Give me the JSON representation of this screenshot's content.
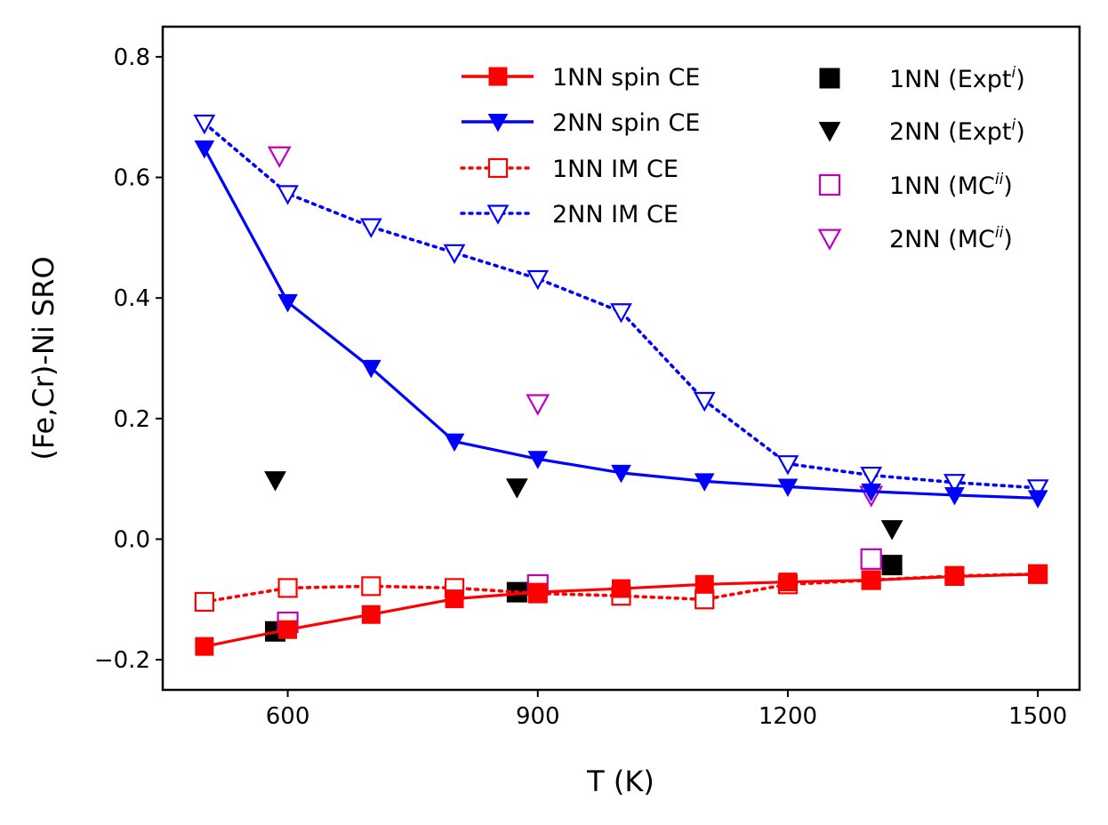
{
  "chart_data": {
    "type": "line",
    "xlabel": "T (K)",
    "ylabel": "(Fe,Cr)-Ni SRO",
    "xlim": [
      450,
      1550
    ],
    "ylim": [
      -0.25,
      0.85
    ],
    "xticks": [
      600,
      900,
      1200,
      1500
    ],
    "yticks": [
      -0.2,
      0.0,
      0.2,
      0.4,
      0.6,
      0.8
    ],
    "xtick_labels": [
      "600",
      "900",
      "1200",
      "1500"
    ],
    "ytick_labels": [
      "−0.2",
      "0.0",
      "0.2",
      "0.4",
      "0.6",
      "0.8"
    ],
    "grid": false,
    "legend_position": "top-right",
    "series": [
      {
        "name": "1NN spin CE",
        "color": "#ff0000",
        "linestyle": "solid",
        "marker": "square",
        "filled": true,
        "x": [
          500,
          600,
          700,
          800,
          900,
          1000,
          1100,
          1200,
          1300,
          1400,
          1500
        ],
        "y": [
          -0.178,
          -0.15,
          -0.125,
          -0.099,
          -0.088,
          -0.082,
          -0.075,
          -0.071,
          -0.068,
          -0.062,
          -0.058
        ]
      },
      {
        "name": "2NN spin CE",
        "color": "#0000ff",
        "linestyle": "solid",
        "marker": "triangle-down",
        "filled": true,
        "x": [
          500,
          600,
          700,
          800,
          900,
          1000,
          1100,
          1200,
          1300,
          1400,
          1500
        ],
        "y": [
          0.648,
          0.393,
          0.284,
          0.162,
          0.133,
          0.11,
          0.096,
          0.087,
          0.079,
          0.073,
          0.068
        ]
      },
      {
        "name": "1NN IM CE",
        "color": "#ff0000",
        "linestyle": "dotted",
        "marker": "square",
        "filled": false,
        "x": [
          500,
          600,
          700,
          800,
          900,
          1000,
          1100,
          1200,
          1300,
          1400,
          1500
        ],
        "y": [
          -0.104,
          -0.081,
          -0.078,
          -0.081,
          -0.09,
          -0.094,
          -0.1,
          -0.075,
          -0.068,
          -0.061,
          -0.058
        ]
      },
      {
        "name": "2NN IM CE",
        "color": "#0000ff",
        "linestyle": "dotted",
        "marker": "triangle-down",
        "filled": false,
        "x": [
          500,
          600,
          700,
          800,
          900,
          1000,
          1100,
          1200,
          1300,
          1400,
          1500
        ],
        "y": [
          0.69,
          0.573,
          0.518,
          0.475,
          0.432,
          0.377,
          0.23,
          0.125,
          0.106,
          0.094,
          0.085
        ]
      },
      {
        "name": "1NN (Expt",
        "superscript": "i",
        "suffix": ")",
        "color": "#000000",
        "linestyle": "none",
        "marker": "square",
        "filled": true,
        "x": [
          585,
          875,
          1325
        ],
        "y": [
          -0.153,
          -0.088,
          -0.043
        ]
      },
      {
        "name": "2NN (Expt",
        "superscript": "i",
        "suffix": ")",
        "color": "#000000",
        "linestyle": "none",
        "marker": "triangle-down",
        "filled": true,
        "x": [
          585,
          875,
          1325
        ],
        "y": [
          0.098,
          0.086,
          0.017
        ]
      },
      {
        "name": "1NN (MC",
        "superscript": "ii",
        "suffix": ")",
        "color": "#bf00bf",
        "linestyle": "none",
        "marker": "square",
        "filled": false,
        "x": [
          600,
          900,
          1300
        ],
        "y": [
          -0.138,
          -0.076,
          -0.033
        ]
      },
      {
        "name": "2NN (MC",
        "superscript": "ii",
        "suffix": ")",
        "color": "#bf00bf",
        "linestyle": "none",
        "marker": "triangle-down",
        "filled": false,
        "x": [
          590,
          900,
          1300
        ],
        "y": [
          0.636,
          0.225,
          0.073
        ]
      }
    ]
  }
}
